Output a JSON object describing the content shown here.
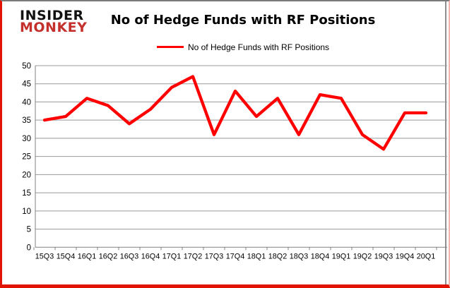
{
  "header": {
    "logo_line1": "INSIDER",
    "logo_line2": "MONKEY",
    "title": "No of Hedge Funds with RF Positions"
  },
  "legend": {
    "label": "No of Hedge Funds with RF Positions"
  },
  "colors": {
    "line": "#ff0000",
    "logo_red": "#c4302b",
    "frame_red": "#e01400",
    "grid": "#999999",
    "axis": "#808080"
  },
  "chart_data": {
    "type": "line",
    "title": "No of Hedge Funds with RF Positions",
    "xlabel": "",
    "ylabel": "",
    "categories": [
      "15Q3",
      "15Q4",
      "16Q1",
      "16Q2",
      "16Q3",
      "16Q4",
      "17Q1",
      "17Q2",
      "17Q3",
      "17Q4",
      "18Q1",
      "18Q2",
      "18Q3",
      "18Q4",
      "19Q1",
      "19Q2",
      "19Q3",
      "19Q4",
      "20Q1"
    ],
    "series": [
      {
        "name": "No of Hedge Funds with RF Positions",
        "color": "#ff0000",
        "values": [
          35,
          36,
          41,
          39,
          34,
          38,
          44,
          47,
          31,
          43,
          36,
          41,
          31,
          42,
          41,
          31,
          27,
          37,
          37
        ]
      }
    ],
    "ylim": [
      0,
      50
    ],
    "ytick_step": 5,
    "yticks": [
      0,
      5,
      10,
      15,
      20,
      25,
      30,
      35,
      40,
      45,
      50
    ],
    "grid": true,
    "legend_position": "top"
  }
}
